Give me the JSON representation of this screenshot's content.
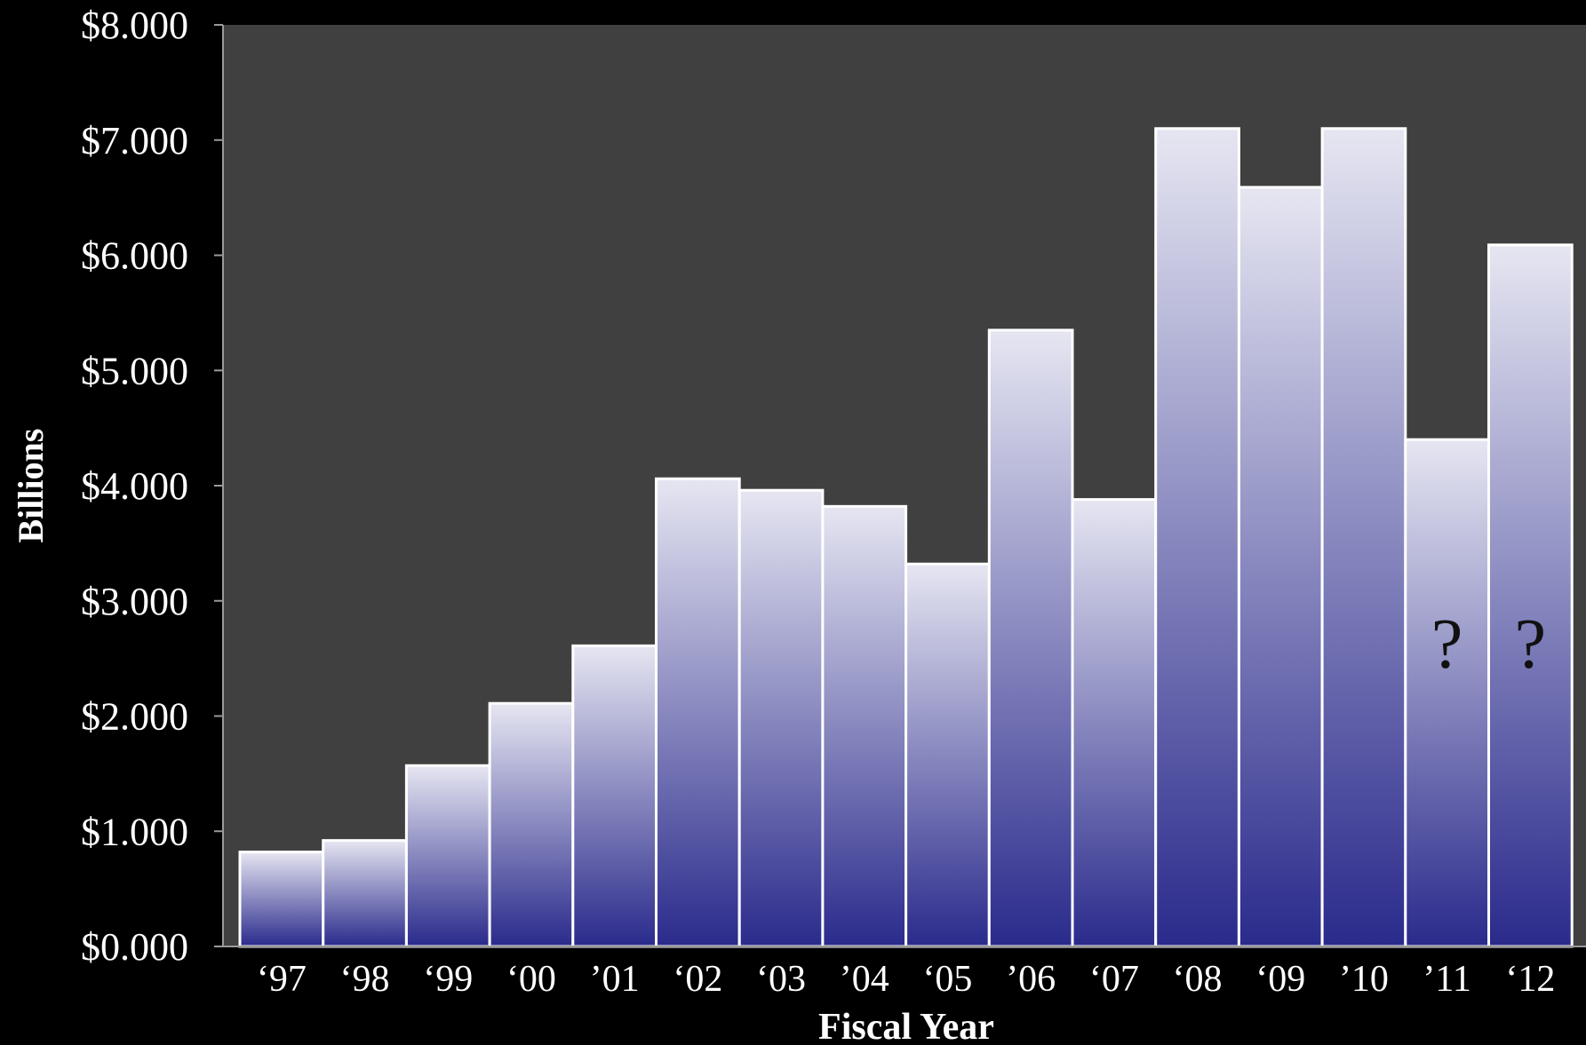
{
  "chart_data": {
    "type": "bar",
    "title": "",
    "xlabel": "Fiscal Year",
    "ylabel": "Billions",
    "ylim": [
      0,
      8
    ],
    "grid": false,
    "legend": "none",
    "y_ticks": [
      "$0.000",
      "$1.000",
      "$2.000",
      "$3.000",
      "$4.000",
      "$5.000",
      "$6.000",
      "$7.000",
      "$8.000"
    ],
    "categories": [
      "‘97",
      "‘98",
      "‘99",
      "‘00",
      "’01",
      "‘02",
      "‘03",
      "’04",
      "‘05",
      "’06",
      "‘07",
      "‘08",
      "‘09",
      "’10",
      "’11",
      "‘12"
    ],
    "values": [
      0.82,
      0.92,
      1.57,
      2.11,
      2.61,
      4.06,
      3.96,
      3.82,
      3.32,
      5.35,
      3.88,
      7.1,
      6.59,
      7.1,
      4.4,
      6.09
    ],
    "annotations": [
      {
        "category": "’11",
        "text": "?"
      },
      {
        "category": "‘12",
        "text": "?"
      }
    ]
  },
  "colors": {
    "page_background": "#000000",
    "plot_background": "#404040",
    "bar_light": "#e6e6f2",
    "bar_dark": "#2a2a8c",
    "bar_edge": "#ffffff",
    "text": "#ffffff",
    "annotation_text": "#111111"
  }
}
